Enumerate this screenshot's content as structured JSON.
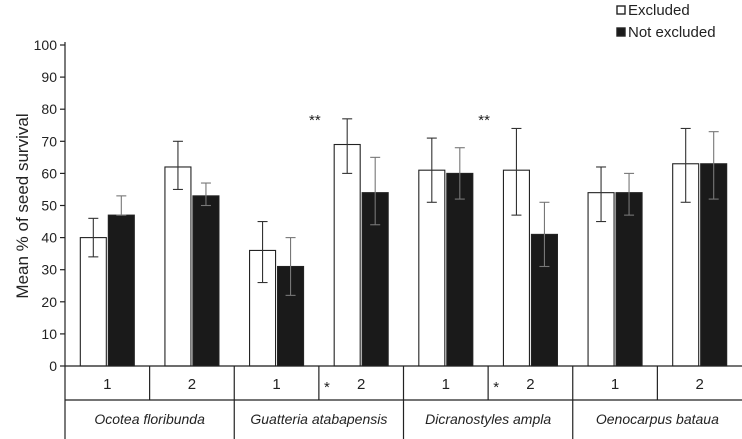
{
  "chart_data": {
    "type": "bar",
    "title": "",
    "xlabel": "",
    "ylabel": "Mean % of seed survival",
    "ylim": [
      0,
      100
    ],
    "yticks": [
      0,
      10,
      20,
      30,
      40,
      50,
      60,
      70,
      80,
      90,
      100
    ],
    "legend_position": "top-right",
    "groups": [
      {
        "species": "Ocotea floribunda",
        "periods": [
          "1",
          "2"
        ]
      },
      {
        "species": "Guatteria atabapensis",
        "periods": [
          "1",
          "2"
        ]
      },
      {
        "species": "Dicranostyles ampla",
        "periods": [
          "1",
          "2"
        ]
      },
      {
        "species": "Oenocarpus bataua",
        "periods": [
          "1",
          "2"
        ]
      }
    ],
    "series": [
      {
        "name": "Excluded",
        "color": "#ffffff",
        "values": [
          40,
          62,
          36,
          69,
          61,
          61,
          54,
          63
        ],
        "err_low": [
          34,
          55,
          26,
          60,
          51,
          47,
          45,
          51
        ],
        "err_high": [
          46,
          70,
          45,
          77,
          71,
          74,
          62,
          74
        ]
      },
      {
        "name": "Not excluded",
        "color": "#1a1a1a",
        "values": [
          47,
          53,
          31,
          54,
          60,
          41,
          54,
          63
        ],
        "err_low": [
          47,
          50,
          22,
          44,
          52,
          31,
          47,
          52
        ],
        "err_high": [
          53,
          57,
          40,
          65,
          68,
          51,
          60,
          73
        ]
      }
    ],
    "annotations": [
      {
        "text": "**",
        "group_index": 1,
        "placement": "above-period-2-left"
      },
      {
        "text": "**",
        "group_index": 2,
        "placement": "above-period-2-left"
      },
      {
        "text": "*",
        "group_index": 1,
        "placement": "below-axis-divider"
      },
      {
        "text": "*",
        "group_index": 2,
        "placement": "below-axis-divider"
      }
    ]
  }
}
